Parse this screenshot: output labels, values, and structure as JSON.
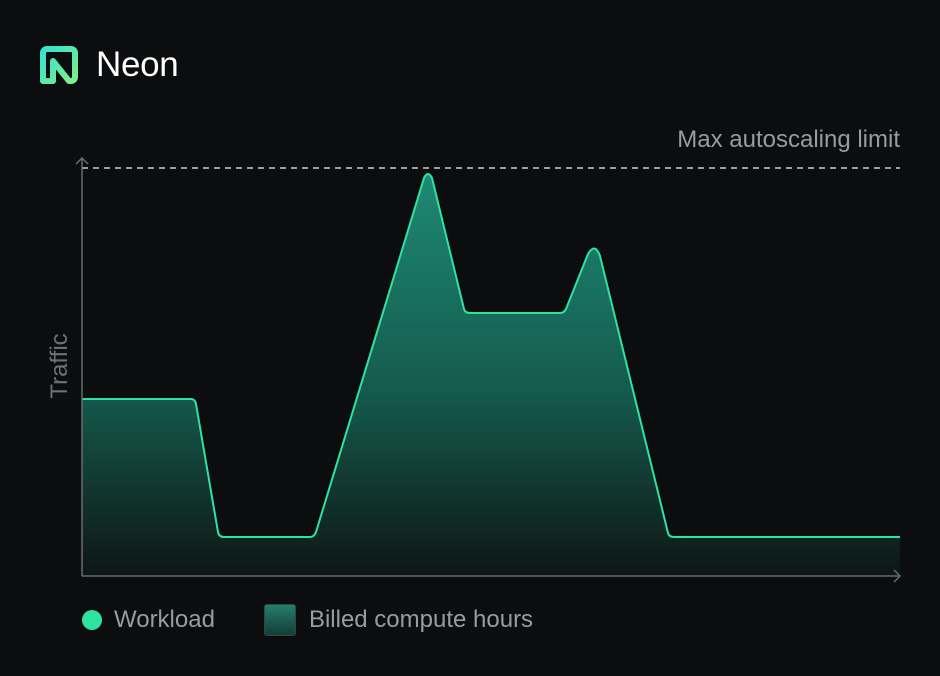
{
  "brand": {
    "name": "Neon",
    "logo_icon": "neon-logo-icon"
  },
  "diagram": {
    "y_axis_label": "Traffic",
    "limit_label": "Max autoscaling limit",
    "colors": {
      "workload": "#2ee3a0",
      "billed": "#1f7a66",
      "background": "#0c0d0f"
    }
  },
  "legend": {
    "workload": "Workload",
    "billed": "Billed compute hours"
  }
}
